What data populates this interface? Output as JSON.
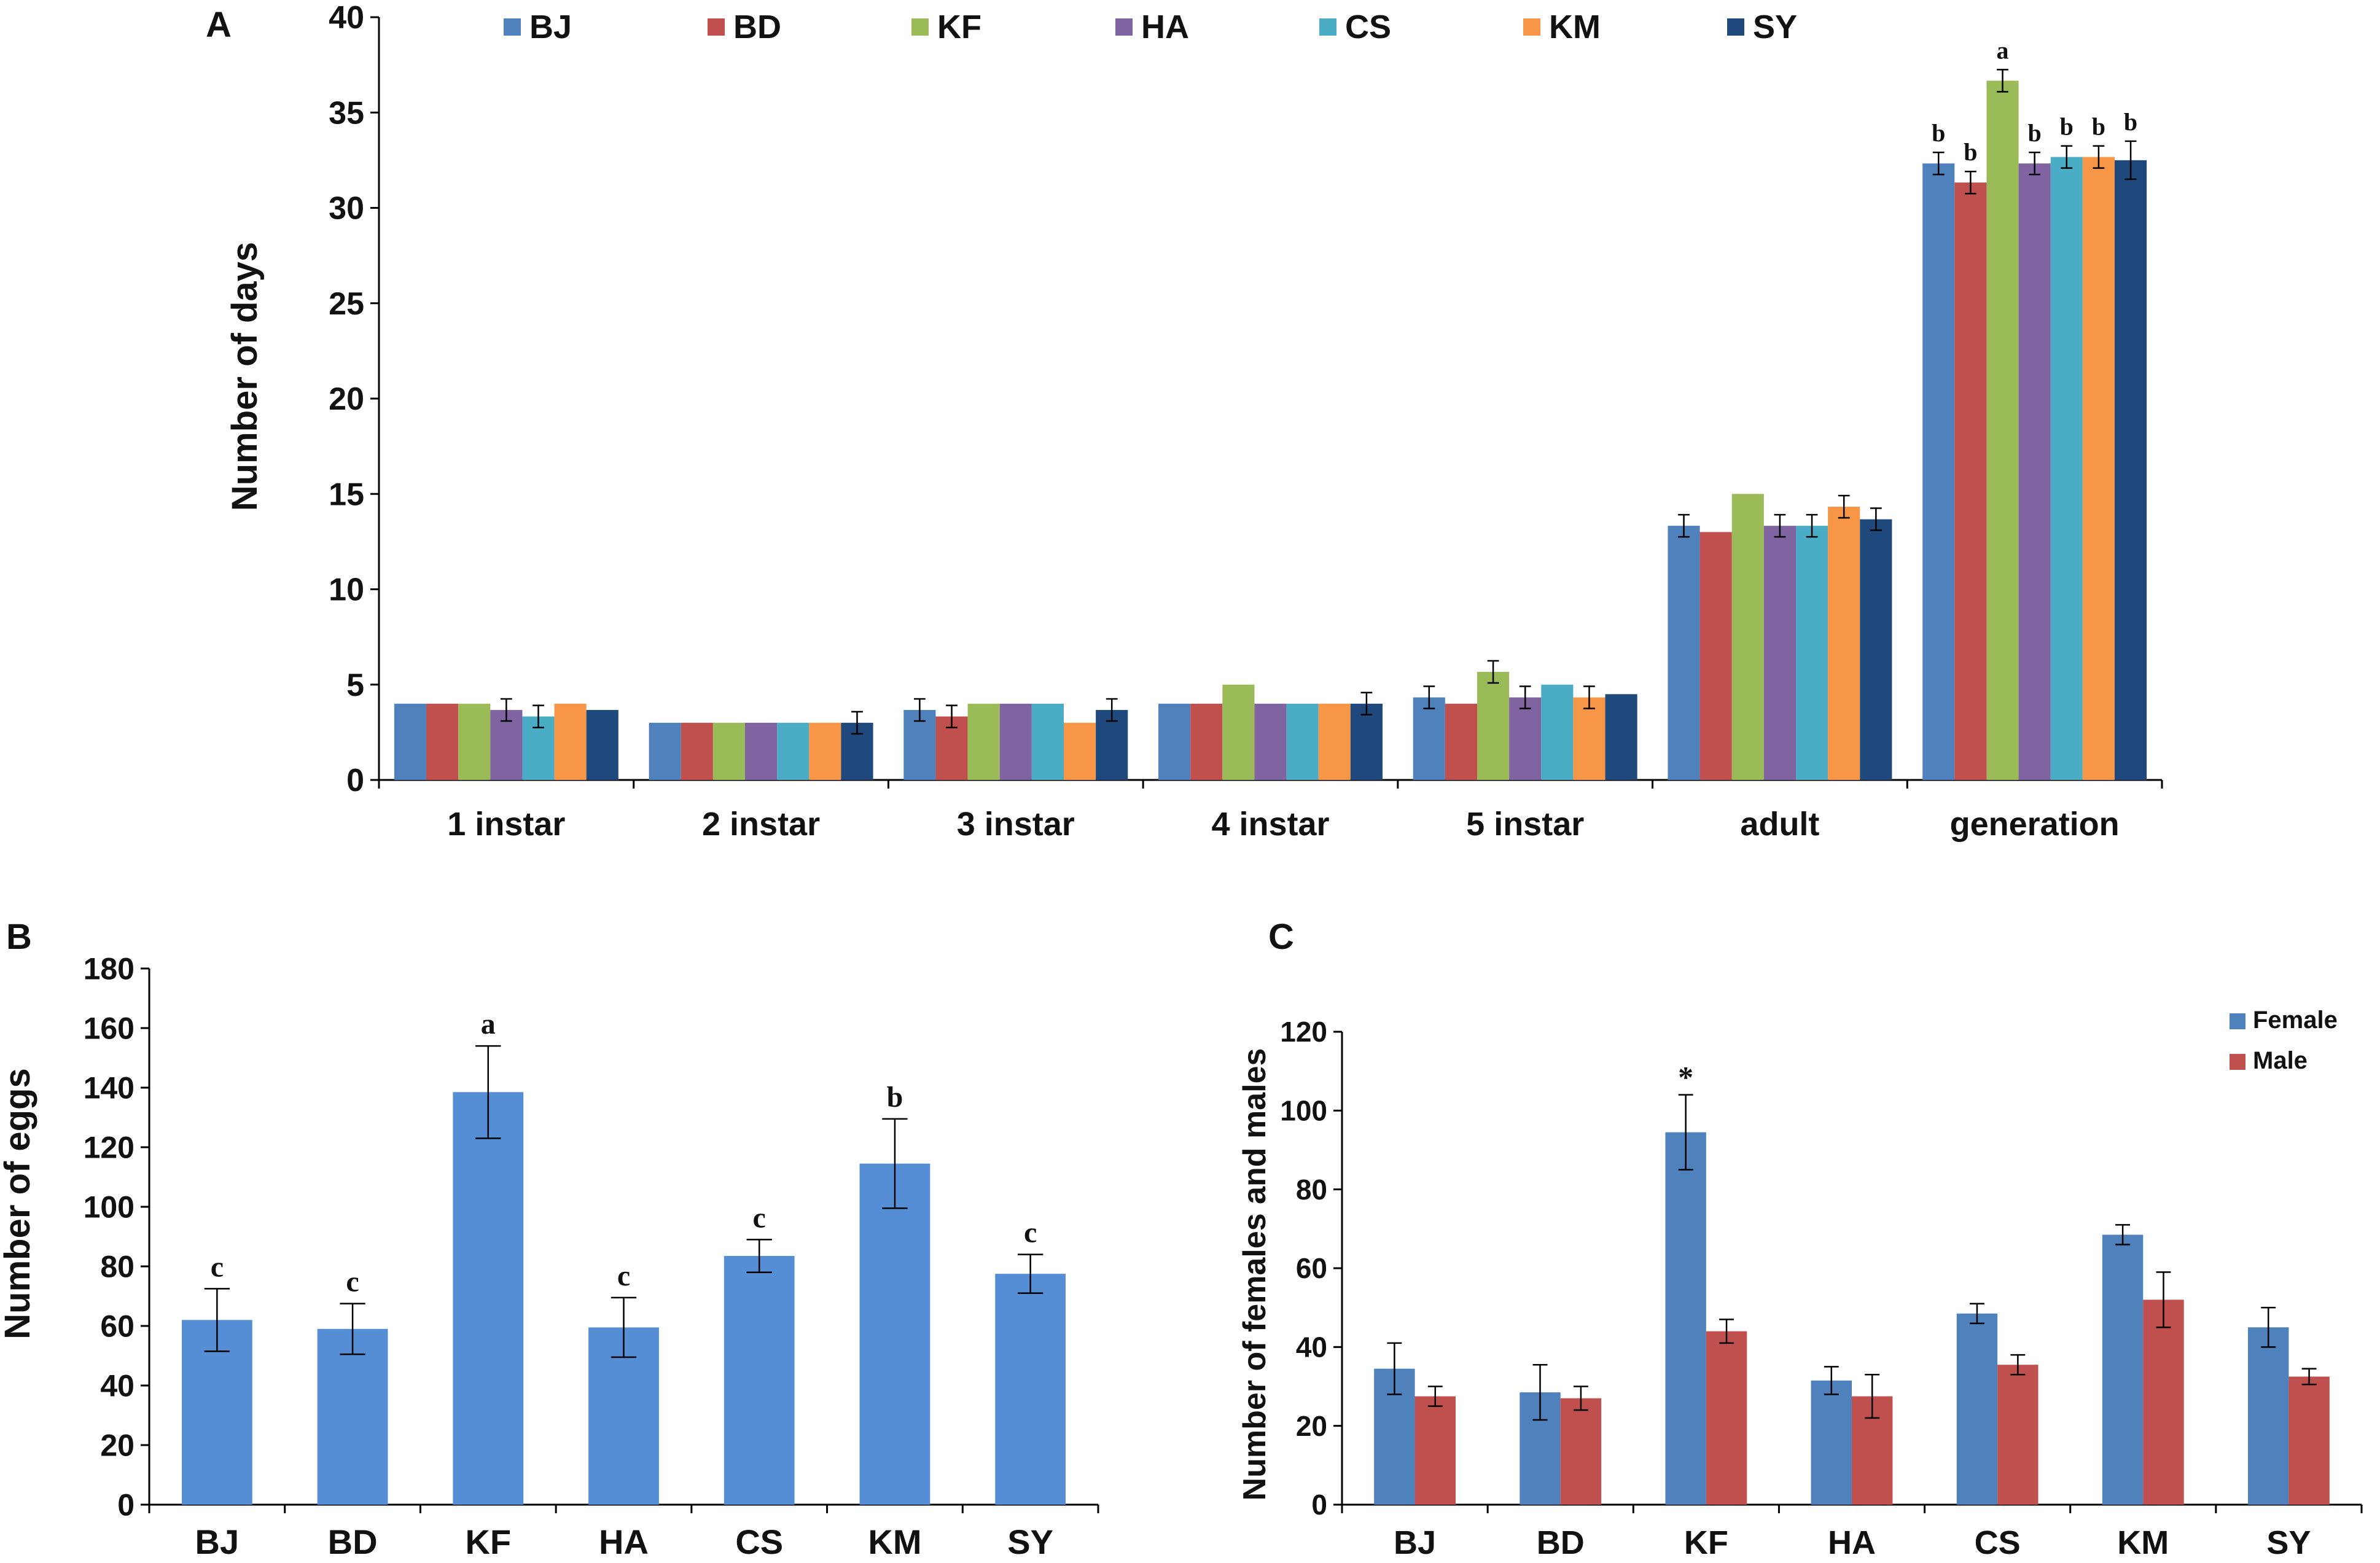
{
  "chart_data": [
    {
      "panel": "A",
      "type": "bar",
      "xlabel": "",
      "ylabel": "Number of days",
      "ylim": [
        0,
        40
      ],
      "yticks": [
        "0",
        "5",
        "10",
        "15",
        "20",
        "25",
        "30",
        "35",
        "40"
      ],
      "categories": [
        "1 instar",
        "2 instar",
        "3 instar",
        "4 instar",
        "5 instar",
        "adult",
        "generation"
      ],
      "legend_position": "top",
      "series": [
        {
          "name": "BJ",
          "color": "#4F81BD",
          "values": [
            4.0,
            3.0,
            3.67,
            4.0,
            4.33,
            13.33,
            32.33
          ],
          "errors": [
            0.0,
            0.0,
            0.58,
            0.0,
            0.58,
            0.58,
            0.58
          ]
        },
        {
          "name": "BD",
          "color": "#C0504D",
          "values": [
            4.0,
            3.0,
            3.33,
            4.0,
            4.0,
            13.0,
            31.33
          ],
          "errors": [
            0.0,
            0.0,
            0.58,
            0.0,
            0.0,
            0.0,
            0.58
          ]
        },
        {
          "name": "KF",
          "color": "#9BBB59",
          "values": [
            4.0,
            3.0,
            4.0,
            5.0,
            5.67,
            15.0,
            36.67
          ],
          "errors": [
            0.0,
            0.0,
            0.0,
            0.0,
            0.58,
            0.0,
            0.58
          ]
        },
        {
          "name": "HA",
          "color": "#8064A2",
          "values": [
            3.67,
            3.0,
            4.0,
            4.0,
            4.33,
            13.33,
            32.33
          ],
          "errors": [
            0.58,
            0.0,
            0.0,
            0.0,
            0.58,
            0.58,
            0.58
          ]
        },
        {
          "name": "CS",
          "color": "#4BACC6",
          "values": [
            3.33,
            3.0,
            4.0,
            4.0,
            5.0,
            13.33,
            32.67
          ],
          "errors": [
            0.58,
            0.0,
            0.0,
            0.0,
            0.0,
            0.58,
            0.58
          ]
        },
        {
          "name": "KM",
          "color": "#F79646",
          "values": [
            4.0,
            3.0,
            3.0,
            4.0,
            4.33,
            14.33,
            32.67
          ],
          "errors": [
            0.0,
            0.0,
            0.0,
            0.0,
            0.58,
            0.58,
            0.58
          ]
        },
        {
          "name": "SY",
          "color": "#1F497D",
          "values": [
            3.67,
            3.0,
            3.67,
            4.0,
            4.5,
            13.67,
            32.5
          ],
          "errors": [
            0.0,
            0.58,
            0.58,
            0.58,
            0.0,
            0.58,
            1.0
          ]
        }
      ],
      "annotations": [
        {
          "category": "generation",
          "labels": [
            "b",
            "b",
            "a",
            "b",
            "b",
            "b",
            "b"
          ]
        }
      ]
    },
    {
      "panel": "B",
      "type": "bar",
      "xlabel": "",
      "ylabel": "Number of eggs",
      "ylim": [
        0,
        180
      ],
      "yticks": [
        "0",
        "20",
        "40",
        "60",
        "80",
        "100",
        "120",
        "140",
        "160",
        "180"
      ],
      "categories": [
        "BJ",
        "BD",
        "KF",
        "HA",
        "CS",
        "KM",
        "SY"
      ],
      "series": [
        {
          "name": "Eggs",
          "color": "#558ED5",
          "values": [
            62,
            59,
            138.5,
            59.5,
            83.5,
            114.5,
            77.5
          ],
          "errors": [
            10.5,
            8.5,
            15.5,
            10,
            5.5,
            15,
            6.5
          ]
        }
      ],
      "annotations": [
        {
          "labels": [
            "c",
            "c",
            "a",
            "c",
            "c",
            "b",
            "c"
          ]
        }
      ]
    },
    {
      "panel": "C",
      "type": "bar",
      "xlabel": "",
      "ylabel": "Number of females and males",
      "ylim": [
        0,
        120
      ],
      "yticks": [
        "0",
        "20",
        "40",
        "60",
        "80",
        "100",
        "120"
      ],
      "categories": [
        "BJ",
        "BD",
        "KF",
        "HA",
        "CS",
        "KM",
        "SY"
      ],
      "legend_position": "top-right",
      "series": [
        {
          "name": "Female",
          "color": "#4F81BD",
          "values": [
            34.5,
            28.5,
            94.5,
            31.5,
            48.5,
            68.5,
            45
          ],
          "errors": [
            6.5,
            7,
            9.5,
            3.5,
            2.5,
            2.5,
            5
          ]
        },
        {
          "name": "Male",
          "color": "#C0504D",
          "values": [
            27.5,
            27,
            44,
            27.5,
            35.5,
            52,
            32.5
          ],
          "errors": [
            2.5,
            3,
            3,
            5.5,
            2.5,
            7,
            2
          ]
        }
      ],
      "annotations": [
        {
          "category": "KF",
          "series": "Female",
          "label": "*"
        }
      ]
    }
  ]
}
